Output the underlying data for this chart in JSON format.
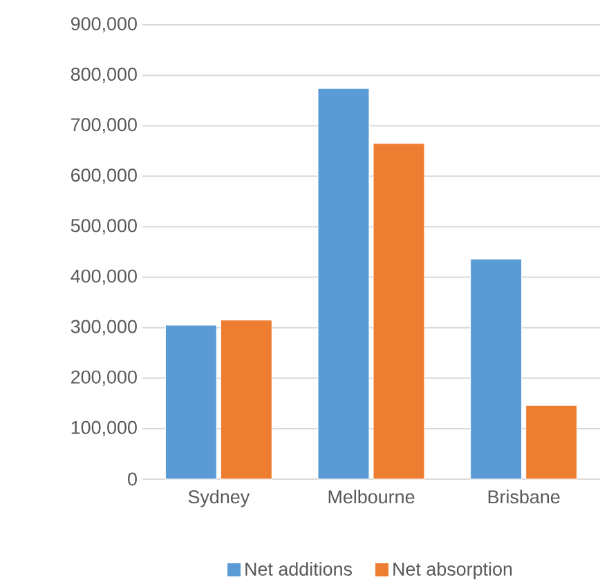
{
  "chart_data": {
    "type": "bar",
    "categories": [
      "Sydney",
      "Melbourne",
      "Brisbane"
    ],
    "series": [
      {
        "name": "Net additions",
        "color": "#5b9bd5",
        "values": [
          305000,
          774000,
          436000
        ]
      },
      {
        "name": "Net absorption",
        "color": "#ed7d31",
        "values": [
          315000,
          665000,
          146000
        ]
      }
    ],
    "ylim": [
      0,
      900000
    ],
    "yticks": [
      {
        "value": 0,
        "label": "0"
      },
      {
        "value": 100000,
        "label": "100,000"
      },
      {
        "value": 200000,
        "label": "200,000"
      },
      {
        "value": 300000,
        "label": "300,000"
      },
      {
        "value": 400000,
        "label": "400,000"
      },
      {
        "value": 500000,
        "label": "500,000"
      },
      {
        "value": 600000,
        "label": "600,000"
      },
      {
        "value": 700000,
        "label": "700,000"
      },
      {
        "value": 800000,
        "label": "800,000"
      },
      {
        "value": 900000,
        "label": "900,000"
      }
    ],
    "grid": "y",
    "legend": "bottom"
  }
}
